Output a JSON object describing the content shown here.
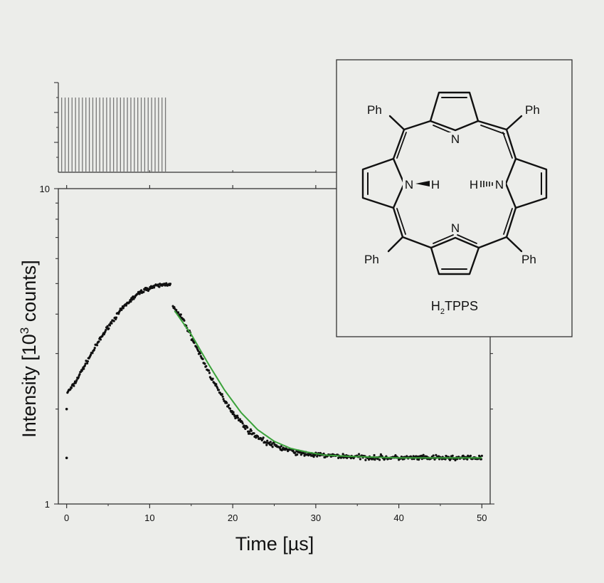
{
  "chart_data": [
    {
      "type": "scatter",
      "id": "main",
      "xlabel": "Time [µs]",
      "ylabel_parts": [
        "Intensity [10",
        "3",
        " counts]"
      ],
      "xlim": [
        -1,
        51
      ],
      "ylim": [
        1,
        10
      ],
      "yscale": "log",
      "xticks": [
        0,
        10,
        20,
        30,
        40,
        50
      ],
      "yticks_labeled": [
        1,
        10
      ],
      "grid": false,
      "series": [
        {
          "kind": "points",
          "color": "#111111",
          "rise": {
            "x": [
              0,
              0.5,
              1,
              2,
              3,
              4,
              5,
              6,
              7,
              8,
              9,
              10,
              11,
              12,
              12.5
            ],
            "y": [
              2.25,
              2.32,
              2.42,
              2.7,
              3.0,
              3.32,
              3.65,
              3.95,
              4.25,
              4.5,
              4.72,
              4.85,
              4.92,
              4.98,
              5.0
            ]
          },
          "decay": {
            "x": [
              12.8,
              14,
              16,
              18,
              20,
              22,
              24,
              26,
              28,
              30,
              35,
              40,
              45,
              50
            ],
            "y": [
              4.2,
              3.85,
              3.0,
              2.35,
              1.95,
              1.7,
              1.57,
              1.5,
              1.45,
              1.43,
              1.41,
              1.4,
              1.4,
              1.4
            ]
          },
          "outliers": {
            "x": [
              0,
              0
            ],
            "y": [
              2.0,
              1.4
            ]
          }
        },
        {
          "kind": "fit-line",
          "color": "#3aa23a",
          "x": [
            13,
            15,
            17,
            19,
            21,
            23,
            25,
            27,
            29,
            31,
            33,
            36,
            40,
            45,
            50
          ],
          "y": [
            4.1,
            3.45,
            2.8,
            2.3,
            1.95,
            1.72,
            1.58,
            1.5,
            1.46,
            1.43,
            1.42,
            1.41,
            1.4,
            1.4,
            1.4
          ]
        }
      ]
    },
    {
      "type": "bar",
      "id": "pulse-train",
      "description_role": "excitation pulse train above main plot",
      "pulse_start": 0,
      "pulse_end": 12.5,
      "pulse_count": 31,
      "xlim": [
        -1,
        51
      ],
      "color": "#777777"
    }
  ],
  "inset": {
    "molecule_name_parts": [
      "H",
      "2",
      "TPPS"
    ],
    "labels": {
      "ph": "Ph",
      "n": "N",
      "nh_left": "N",
      "h_left": "H",
      "h_right": "H",
      "nh_right": "N"
    }
  }
}
